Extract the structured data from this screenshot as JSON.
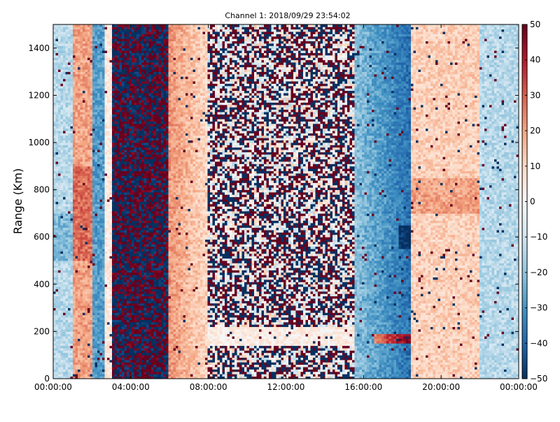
{
  "chart_data": {
    "type": "heatmap",
    "title": "Channel 1: 2018/09/29 23:54:02",
    "xlabel": "",
    "ylabel": "Range (Km)",
    "x_ticks": [
      "00:00:00",
      "04:00:00",
      "08:00:00",
      "12:00:00",
      "16:00:00",
      "20:00:00",
      "00:00:00"
    ],
    "x_range_hours": [
      0,
      24
    ],
    "y_ticks": [
      "0",
      "200",
      "400",
      "600",
      "800",
      "1000",
      "1200",
      "1400"
    ],
    "y_range": [
      0,
      1500
    ],
    "colorbar": {
      "colormap": "RdBu_r",
      "ticks": [
        "50",
        "40",
        "30",
        "20",
        "10",
        "0",
        "−10",
        "−20",
        "−30",
        "−40",
        "−50"
      ],
      "range": [
        -50,
        50
      ],
      "low_color": "#053061",
      "high_color": "#67001f"
    },
    "grid": false,
    "data_regions": [
      {
        "time": "00:00-01:00",
        "description_value": -15
      },
      {
        "time": "01:00-02:00",
        "description_value": 20
      },
      {
        "time": "02:00-03:00",
        "description_value": -25
      },
      {
        "time": "03:00-06:00",
        "description_value": "noise +/-50"
      },
      {
        "time": "06:00-08:00",
        "description_value": 18
      },
      {
        "time": "08:00-15:30",
        "description_value": "noise +/-50"
      },
      {
        "time": "15:30-18:30",
        "description_value": -30
      },
      {
        "time": "18:30-22:00",
        "description_value": 12
      },
      {
        "time": "22:00-24:00",
        "description_value": -12
      }
    ]
  }
}
